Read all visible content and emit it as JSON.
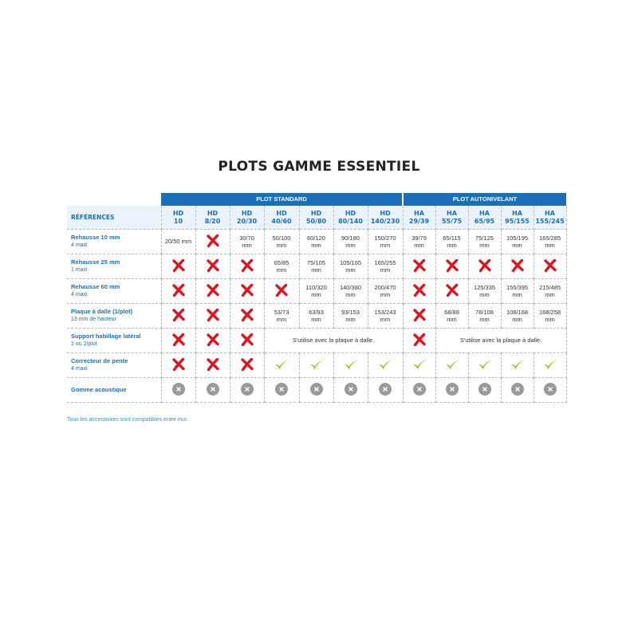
{
  "title": "PLOTS GAMME ESSENTIEL",
  "groups": [
    {
      "label": "PLOT STANDARD",
      "span": 7
    },
    {
      "label": "PLOT AUTONIVELANT",
      "span": 5
    }
  ],
  "references_label": "RÉFÉRENCES",
  "columns": [
    [
      "HD",
      "10"
    ],
    [
      "HD",
      "8/20"
    ],
    [
      "HD",
      "20/30"
    ],
    [
      "HD",
      "40/60"
    ],
    [
      "HD",
      "50/80"
    ],
    [
      "HD",
      "80/140"
    ],
    [
      "HD",
      "140/230"
    ],
    [
      "HA",
      "29/39"
    ],
    [
      "HA",
      "55/75"
    ],
    [
      "HA",
      "65/95"
    ],
    [
      "HA",
      "95/155"
    ],
    [
      "HA",
      "155/245"
    ]
  ],
  "rows": [
    {
      "label": "Rehausse 10 mm",
      "sub": "4 maxi",
      "cells": [
        {
          "t": "20/50 mm"
        },
        {
          "i": "cross"
        },
        {
          "t": "30/70",
          "u": "mm"
        },
        {
          "t": "50/100",
          "u": "mm"
        },
        {
          "t": "60/120",
          "u": "mm"
        },
        {
          "t": "90/180",
          "u": "mm"
        },
        {
          "t": "150/270",
          "u": "mm"
        },
        {
          "t": "39/79",
          "u": "mm"
        },
        {
          "t": "65/115",
          "u": "mm"
        },
        {
          "t": "75/125",
          "u": "mm"
        },
        {
          "t": "105/195",
          "u": "mm"
        },
        {
          "t": "165/285",
          "u": "mm"
        }
      ]
    },
    {
      "label": "Rehausse 25 mm",
      "sub": "1 maxi",
      "cells": [
        {
          "i": "cross"
        },
        {
          "i": "cross"
        },
        {
          "i": "cross"
        },
        {
          "t": "65/85",
          "u": "mm"
        },
        {
          "t": "75/105",
          "u": "mm"
        },
        {
          "t": "105/165",
          "u": "mm"
        },
        {
          "t": "165/255",
          "u": "mm"
        },
        {
          "i": "cross"
        },
        {
          "i": "cross"
        },
        {
          "i": "cross"
        },
        {
          "i": "cross"
        },
        {
          "i": "cross"
        }
      ]
    },
    {
      "label": "Rehausse 60 mm",
      "sub": "4 maxi",
      "cells": [
        {
          "i": "cross"
        },
        {
          "i": "cross"
        },
        {
          "i": "cross"
        },
        {
          "i": "cross"
        },
        {
          "t": "110/320",
          "u": "mm"
        },
        {
          "t": "140/380",
          "u": "mm"
        },
        {
          "t": "200/470",
          "u": "mm"
        },
        {
          "i": "cross"
        },
        {
          "i": "cross"
        },
        {
          "t": "125/335",
          "u": "mm"
        },
        {
          "t": "155/395",
          "u": "mm"
        },
        {
          "t": "215/485",
          "u": "mm"
        }
      ]
    },
    {
      "label": "Plaque à dalle (1/plot)",
      "sub": "13 mm de hauteur",
      "cells": [
        {
          "i": "cross"
        },
        {
          "i": "cross"
        },
        {
          "i": "cross"
        },
        {
          "t": "53/73",
          "u": "mm"
        },
        {
          "t": "63/93",
          "u": "mm"
        },
        {
          "t": "93/153",
          "u": "mm"
        },
        {
          "t": "153/243",
          "u": "mm"
        },
        {
          "i": "cross"
        },
        {
          "t": "68/88",
          "u": "mm"
        },
        {
          "t": "78/108",
          "u": "mm"
        },
        {
          "t": "108/168",
          "u": "mm"
        },
        {
          "t": "168/258",
          "u": "mm"
        }
      ]
    },
    {
      "label": "Support habillage latéral",
      "sub": "1 ou 2/plot",
      "cells": [
        {
          "i": "cross"
        },
        {
          "i": "cross"
        },
        {
          "i": "cross"
        },
        {
          "t": "S'utilise avec la plaque à dalle.",
          "span": 4
        },
        {
          "i": "cross"
        },
        {
          "t": "S'utilise avec la plaque à dalle.",
          "span": 4
        }
      ]
    },
    {
      "label": "Correcteur de pente",
      "sub": "4 maxi",
      "cells": [
        {
          "i": "cross"
        },
        {
          "i": "cross"
        },
        {
          "i": "cross"
        },
        {
          "i": "check"
        },
        {
          "i": "check"
        },
        {
          "i": "check"
        },
        {
          "i": "check"
        },
        {
          "i": "check"
        },
        {
          "i": "check"
        },
        {
          "i": "check"
        },
        {
          "i": "check"
        },
        {
          "i": "check"
        }
      ]
    },
    {
      "label": "Gomme acoustique",
      "cells": [
        {
          "i": "grey-x"
        },
        {
          "i": "grey-x"
        },
        {
          "i": "grey-x"
        },
        {
          "i": "grey-x"
        },
        {
          "i": "grey-x"
        },
        {
          "i": "grey-x"
        },
        {
          "i": "grey-x"
        },
        {
          "i": "grey-x"
        },
        {
          "i": "grey-x"
        },
        {
          "i": "grey-x"
        },
        {
          "i": "grey-x"
        },
        {
          "i": "grey-x"
        }
      ]
    }
  ],
  "note": "Tous les accessoires sont compatibles entre eux.",
  "colors": {
    "header_blue": "#1a6fb8",
    "cross_red": "#e0141e",
    "check_green": "#9bc31c",
    "grey_icon": "#9a9a9a",
    "note_blue": "#2a9bd8"
  }
}
